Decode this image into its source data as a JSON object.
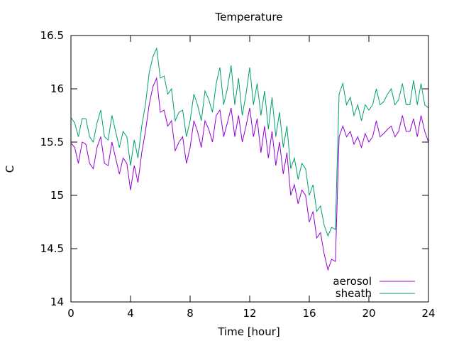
{
  "chart_data": {
    "type": "line",
    "title": "Temperature",
    "xlabel": "Time [hour]",
    "ylabel": "C",
    "xlim": [
      0,
      24
    ],
    "ylim": [
      14,
      16.5
    ],
    "x_ticks": [
      0,
      4,
      8,
      12,
      16,
      20,
      24
    ],
    "y_ticks": [
      14,
      14.5,
      15,
      15.5,
      16,
      16.5
    ],
    "y_tick_labels": [
      "14",
      "14.5",
      "15",
      "15.5",
      "16",
      "16.5"
    ],
    "x_tick_labels": [
      "0",
      "4",
      "8",
      "12",
      "16",
      "20",
      "24"
    ],
    "grid": false,
    "legend_position": "bottom-right",
    "series": [
      {
        "name": "aerosol",
        "color": "#9400d3",
        "x": [
          0,
          0.25,
          0.5,
          0.75,
          1,
          1.25,
          1.5,
          1.75,
          2,
          2.25,
          2.5,
          2.75,
          3,
          3.25,
          3.5,
          3.75,
          4,
          4.25,
          4.5,
          4.75,
          5,
          5.25,
          5.5,
          5.75,
          6,
          6.25,
          6.5,
          6.75,
          7,
          7.25,
          7.5,
          7.75,
          8,
          8.25,
          8.5,
          8.75,
          9,
          9.25,
          9.5,
          9.75,
          10,
          10.25,
          10.5,
          10.75,
          11,
          11.25,
          11.5,
          11.75,
          12,
          12.25,
          12.5,
          12.75,
          13,
          13.25,
          13.5,
          13.75,
          14,
          14.25,
          14.5,
          14.75,
          15,
          15.25,
          15.5,
          15.75,
          16,
          16.25,
          16.5,
          16.75,
          17,
          17.25,
          17.5,
          17.75,
          18,
          18.25,
          18.5,
          18.75,
          19,
          19.25,
          19.5,
          19.75,
          20,
          20.25,
          20.5,
          20.75,
          21,
          21.25,
          21.5,
          21.75,
          22,
          22.25,
          22.5,
          22.75,
          23,
          23.25,
          23.5,
          23.75,
          24
        ],
        "values": [
          15.49,
          15.45,
          15.3,
          15.5,
          15.48,
          15.3,
          15.25,
          15.45,
          15.55,
          15.3,
          15.28,
          15.5,
          15.35,
          15.2,
          15.35,
          15.3,
          15.05,
          15.28,
          15.12,
          15.4,
          15.6,
          15.85,
          16.02,
          16.1,
          15.78,
          15.8,
          15.65,
          15.7,
          15.42,
          15.5,
          15.55,
          15.3,
          15.45,
          15.7,
          15.6,
          15.45,
          15.7,
          15.62,
          15.5,
          15.75,
          15.8,
          15.55,
          15.68,
          15.82,
          15.55,
          15.75,
          15.5,
          15.65,
          15.82,
          15.55,
          15.72,
          15.4,
          15.65,
          15.35,
          15.6,
          15.28,
          15.5,
          15.2,
          15.4,
          15.0,
          15.1,
          14.92,
          15.05,
          15.0,
          14.75,
          14.85,
          14.6,
          14.65,
          14.45,
          14.3,
          14.4,
          14.38,
          15.55,
          15.65,
          15.55,
          15.6,
          15.48,
          15.55,
          15.45,
          15.58,
          15.5,
          15.55,
          15.7,
          15.55,
          15.58,
          15.62,
          15.65,
          15.55,
          15.6,
          15.75,
          15.6,
          15.6,
          15.72,
          15.55,
          15.75,
          15.6,
          15.5
        ]
      },
      {
        "name": "sheath",
        "color": "#009e73",
        "x": [
          0,
          0.25,
          0.5,
          0.75,
          1,
          1.25,
          1.5,
          1.75,
          2,
          2.25,
          2.5,
          2.75,
          3,
          3.25,
          3.5,
          3.75,
          4,
          4.25,
          4.5,
          4.75,
          5,
          5.25,
          5.5,
          5.75,
          6,
          6.25,
          6.5,
          6.75,
          7,
          7.25,
          7.5,
          7.75,
          8,
          8.25,
          8.5,
          8.75,
          9,
          9.25,
          9.5,
          9.75,
          10,
          10.25,
          10.5,
          10.75,
          11,
          11.25,
          11.5,
          11.75,
          12,
          12.25,
          12.5,
          12.75,
          13,
          13.25,
          13.5,
          13.75,
          14,
          14.25,
          14.5,
          14.75,
          15,
          15.25,
          15.5,
          15.75,
          16,
          16.25,
          16.5,
          16.75,
          17,
          17.25,
          17.5,
          17.75,
          18,
          18.25,
          18.5,
          18.75,
          19,
          19.25,
          19.5,
          19.75,
          20,
          20.25,
          20.5,
          20.75,
          21,
          21.25,
          21.5,
          21.75,
          22,
          22.25,
          22.5,
          22.75,
          23,
          23.25,
          23.5,
          23.75,
          24
        ],
        "values": [
          15.73,
          15.68,
          15.55,
          15.72,
          15.72,
          15.55,
          15.5,
          15.68,
          15.8,
          15.55,
          15.52,
          15.75,
          15.6,
          15.45,
          15.6,
          15.55,
          15.28,
          15.52,
          15.35,
          15.65,
          15.85,
          16.15,
          16.3,
          16.38,
          16.1,
          16.12,
          15.95,
          16.0,
          15.7,
          15.78,
          15.8,
          15.55,
          15.7,
          15.95,
          15.85,
          15.7,
          15.98,
          15.9,
          15.78,
          16.05,
          16.2,
          15.85,
          16.0,
          16.22,
          15.85,
          16.1,
          15.75,
          15.95,
          16.2,
          15.85,
          16.05,
          15.75,
          15.98,
          15.62,
          15.92,
          15.55,
          15.78,
          15.45,
          15.65,
          15.25,
          15.35,
          15.15,
          15.3,
          15.25,
          15.0,
          15.1,
          14.85,
          14.9,
          14.72,
          14.62,
          14.7,
          14.68,
          15.95,
          16.05,
          15.85,
          15.92,
          15.75,
          15.85,
          15.7,
          15.85,
          15.8,
          15.85,
          16.0,
          15.85,
          15.88,
          15.95,
          16.0,
          15.85,
          15.9,
          16.05,
          15.85,
          15.85,
          16.08,
          15.85,
          16.05,
          15.85,
          15.82
        ]
      }
    ]
  }
}
